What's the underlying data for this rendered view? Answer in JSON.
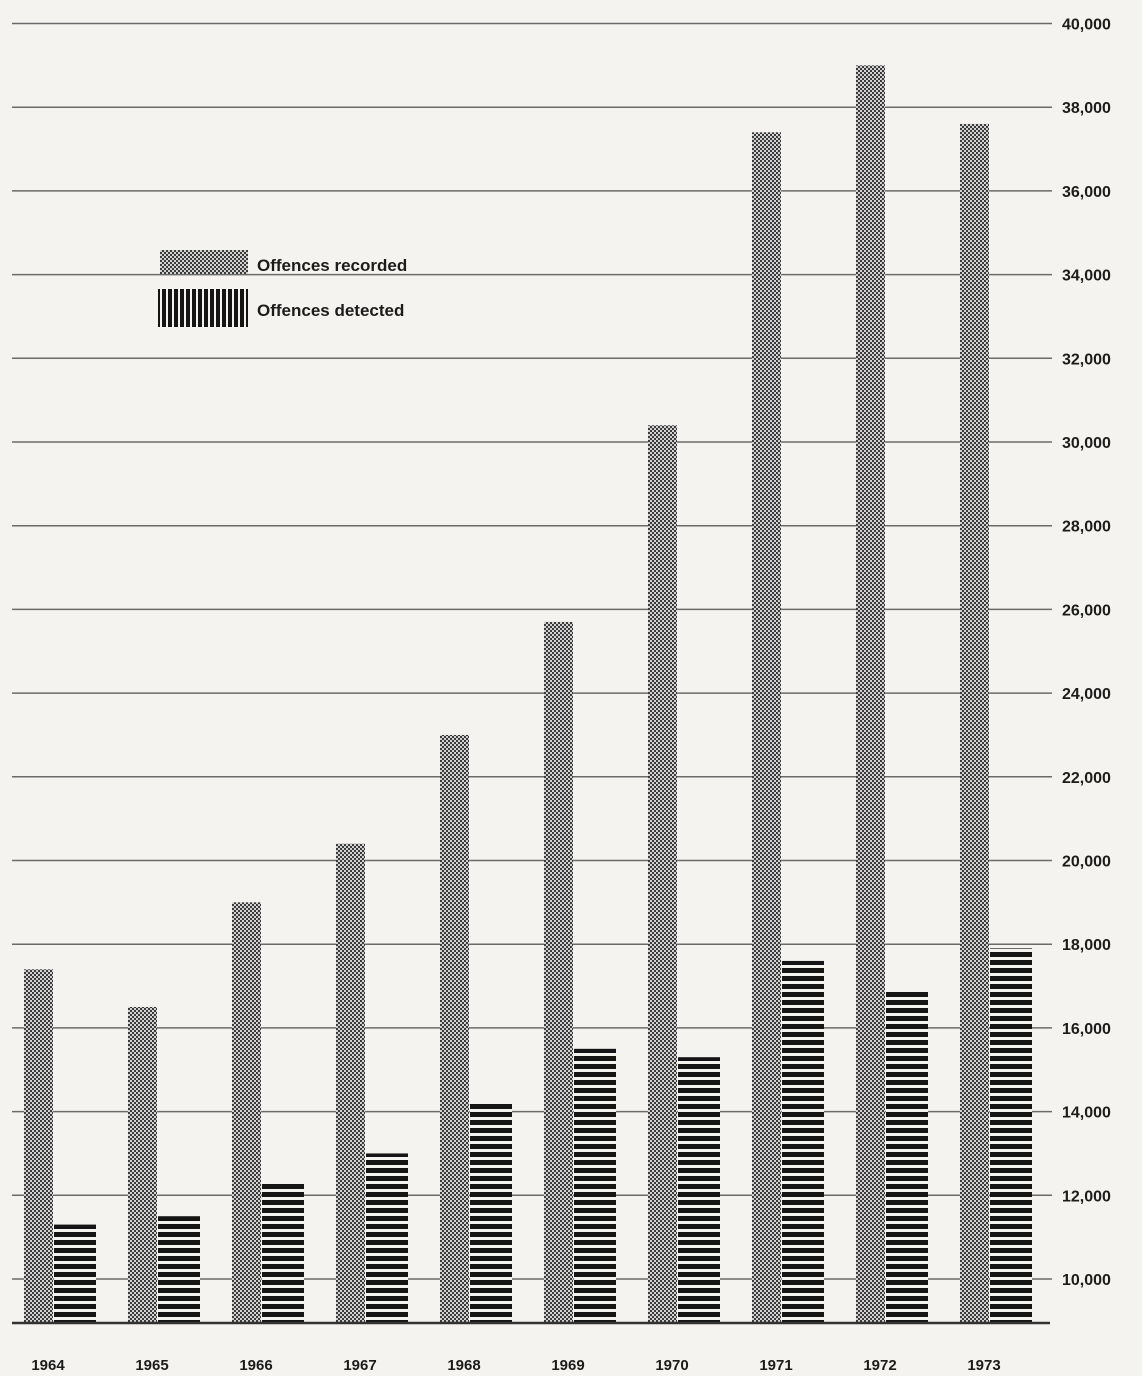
{
  "chart_data": {
    "type": "bar",
    "title": "",
    "xlabel": "",
    "ylabel": "",
    "categories": [
      "1964",
      "1965",
      "1966",
      "1967",
      "1968",
      "1969",
      "1970",
      "1971",
      "1972",
      "1973"
    ],
    "series": [
      {
        "name": "Offences recorded",
        "values": [
          17400,
          16500,
          19000,
          20400,
          23000,
          25700,
          30400,
          37400,
          39000,
          37600
        ]
      },
      {
        "name": "Offences detected",
        "values": [
          11300,
          11500,
          12300,
          13000,
          14200,
          15500,
          15300,
          17600,
          16900,
          17900
        ]
      }
    ],
    "yticks": [
      "10,000",
      "12,000",
      "14,000",
      "16,000",
      "18,000",
      "20,000",
      "22,000",
      "24,000",
      "26,000",
      "28,000",
      "30,000",
      "32,000",
      "34,000",
      "36,000",
      "38,000",
      "40,000"
    ],
    "ylim": [
      9000,
      40000
    ],
    "y_axis_position": "right",
    "legend_position": "top-left",
    "grid": true
  },
  "legend": {
    "recorded_label": "Offences recorded",
    "detected_label": "Offences detected"
  }
}
